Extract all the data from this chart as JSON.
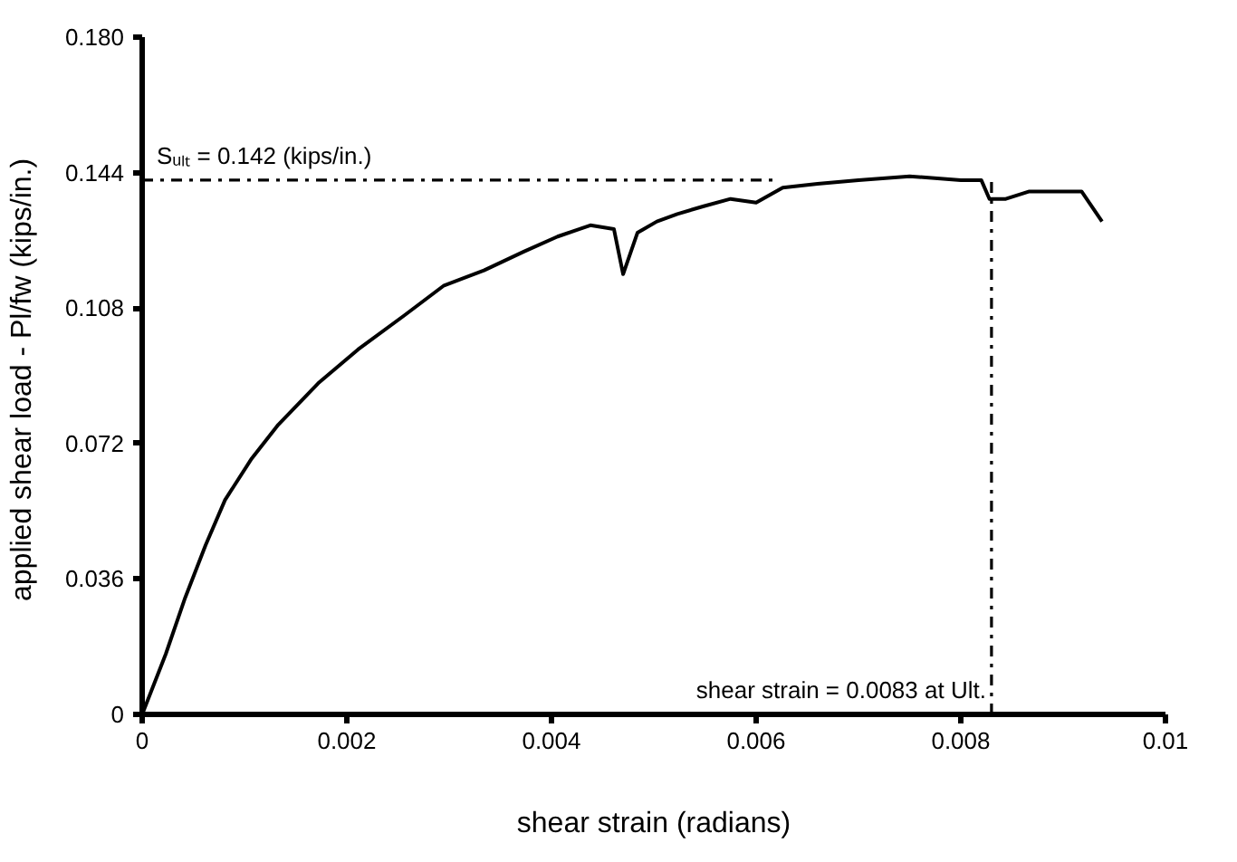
{
  "chart_data": {
    "type": "line",
    "xlabel": "shear strain (radians)",
    "ylabel": "applied shear load - Pl/fw  (kips/in.)",
    "xlim": [
      0,
      0.01
    ],
    "xticks": [
      0,
      0.002,
      0.004,
      0.006,
      0.008,
      0.01
    ],
    "ylim": [
      0,
      0.18
    ],
    "yticks": [
      0,
      0.036,
      0.072,
      0.108,
      0.144,
      {
        "value": 0.18,
        "label": "0.180"
      }
    ],
    "series": [
      {
        "color": "#000000",
        "line_style": "solid",
        "x": [
          0,
          0.00023,
          0.00042,
          0.00062,
          0.00081,
          0.00107,
          0.00133,
          0.00172,
          0.00211,
          0.00256,
          0.00295,
          0.00334,
          0.00373,
          0.00406,
          0.00438,
          0.00461,
          0.0047,
          0.00484,
          0.00503,
          0.00523,
          0.00548,
          0.00575,
          0.006,
          0.00626,
          0.0066,
          0.007,
          0.0075,
          0.008,
          0.0082,
          0.00828,
          0.00844,
          0.00867,
          0.00918,
          0.00938
        ],
        "values": [
          0,
          0.016,
          0.031,
          0.045,
          0.057,
          0.068,
          0.077,
          0.088,
          0.097,
          0.106,
          0.114,
          0.118,
          0.123,
          0.127,
          0.13,
          0.129,
          0.117,
          0.128,
          0.131,
          0.133,
          0.135,
          0.137,
          0.136,
          0.14,
          0.141,
          0.142,
          0.143,
          0.142,
          0.142,
          0.137,
          0.137,
          0.139,
          0.139,
          0.131
        ]
      },
      {
        "color": "#000000",
        "line_style": "dashed",
        "x": [
          0,
          0.0062
        ],
        "values": [
          0.142,
          0.142
        ]
      },
      {
        "color": "#000000",
        "line_style": "dashed",
        "x": [
          0.0083,
          0.0083
        ],
        "values": [
          0,
          0.142
        ]
      }
    ],
    "annotations": [
      {
        "text": "Sᵤₗₜ = 0.142 (kips/in.)",
        "x": 0,
        "y": 0.142
      },
      {
        "text": "shear strain = 0.0083 at Ult.",
        "x": 0.0083,
        "y": 0
      }
    ]
  }
}
